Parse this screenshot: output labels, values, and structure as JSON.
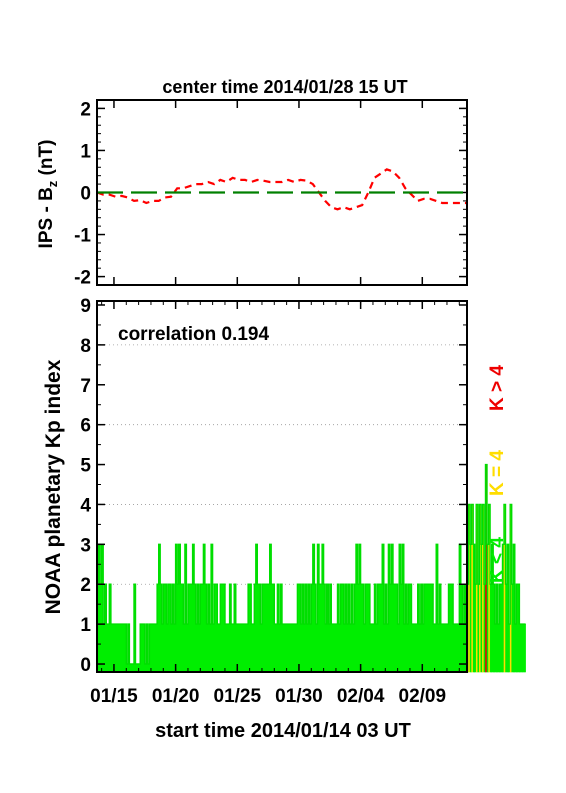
{
  "chart_data": [
    {
      "panel": "top",
      "type": "line",
      "title": "center time 2014/01/28 15 UT",
      "ylabel": {
        "main": "IPS - B",
        "sub": "z",
        "unit": " (nT)"
      },
      "ylim": [
        -2.2,
        2.2
      ],
      "yticks": [
        -2,
        -1,
        0,
        1,
        2
      ],
      "xlim": [
        0,
        30
      ],
      "grid": false,
      "series": [
        {
          "style": "red-dashed",
          "color": "#ff0000",
          "x": [
            0,
            0.5,
            1,
            1.5,
            2,
            2.5,
            3,
            3.5,
            4,
            4.5,
            5,
            5.5,
            6,
            6.5,
            7,
            7.5,
            8,
            8.5,
            9,
            9.5,
            10,
            10.5,
            11,
            11.5,
            12,
            12.5,
            13,
            13.5,
            14,
            14.5,
            15,
            15.5,
            16,
            16.5,
            17,
            17.5,
            18,
            18.5,
            19,
            19.5,
            20,
            20.5,
            21,
            21.5,
            22,
            22.5,
            23,
            23.5,
            24,
            24.5,
            25,
            25.5,
            26,
            26.5,
            27,
            27.5,
            28,
            28.5,
            29,
            29.5,
            30
          ],
          "values": [
            0.0,
            -0.05,
            -0.05,
            -0.1,
            -0.08,
            -0.12,
            -0.2,
            -0.18,
            -0.25,
            -0.2,
            -0.2,
            -0.12,
            -0.1,
            0.1,
            0.1,
            0.15,
            0.2,
            0.2,
            0.25,
            0.2,
            0.3,
            0.25,
            0.35,
            0.3,
            0.3,
            0.25,
            0.3,
            0.28,
            0.25,
            0.25,
            0.25,
            0.3,
            0.25,
            0.3,
            0.28,
            0.2,
            0.0,
            -0.2,
            -0.35,
            -0.4,
            -0.35,
            -0.4,
            -0.35,
            -0.3,
            0.0,
            0.35,
            0.45,
            0.55,
            0.5,
            0.35,
            0.1,
            -0.05,
            -0.2,
            -0.15,
            -0.15,
            -0.2,
            -0.25,
            -0.25,
            -0.25,
            -0.25,
            -0.25
          ]
        },
        {
          "style": "green-long-dash",
          "color": "#008000",
          "x": [
            0,
            30
          ],
          "values": [
            0,
            0
          ]
        }
      ]
    },
    {
      "panel": "bottom",
      "type": "bar",
      "ylabel": "NOAA planetary Kp index",
      "xlabel": "start time 2014/01/14 03 UT",
      "annotation": "correlation 0.194",
      "ylim": [
        -0.2,
        9.1
      ],
      "yticks": [
        0,
        1,
        2,
        3,
        4,
        5,
        6,
        7,
        8,
        9
      ],
      "gridlines_y": [
        2,
        4,
        6,
        8
      ],
      "grid": true,
      "xlim": [
        0,
        30
      ],
      "xtick_positions": [
        1.375,
        6.375,
        11.375,
        16.375,
        21.375,
        26.375
      ],
      "xticklabels": [
        "01/15",
        "01/20",
        "01/25",
        "01/30",
        "02/04",
        "02/09"
      ],
      "legend": [
        {
          "label": "K < 4",
          "color": "#00ee00"
        },
        {
          "label": "K = 4",
          "color": "#ffdd00"
        },
        {
          "label": "K > 4",
          "color": "#ee0000"
        }
      ],
      "kp_values": [
        2,
        3,
        2,
        3,
        1,
        2,
        1,
        1,
        2,
        1,
        1,
        1,
        1,
        1,
        1,
        1,
        1,
        1,
        1,
        0,
        1,
        0,
        0,
        0,
        2,
        0,
        0,
        0,
        1,
        1,
        1,
        0,
        1,
        0,
        1,
        1,
        1,
        1,
        1,
        2,
        3,
        2,
        1,
        2,
        2,
        1,
        2,
        2,
        1,
        2,
        1,
        3,
        2,
        3,
        2,
        2,
        1,
        3,
        1,
        2,
        2,
        2,
        3,
        2,
        1,
        2,
        1,
        2,
        2,
        3,
        2,
        1,
        2,
        1,
        3,
        1,
        2,
        2,
        1,
        1,
        2,
        2,
        2,
        1,
        1,
        1,
        2,
        1,
        1,
        2,
        1,
        1,
        1,
        1,
        1,
        1,
        1,
        1,
        2,
        2,
        1,
        1,
        2,
        3,
        2,
        2,
        1,
        2,
        2,
        2,
        2,
        2,
        3,
        2,
        2,
        1,
        1,
        2,
        1,
        2,
        1,
        1,
        1,
        1,
        1,
        1,
        1,
        1,
        1,
        1,
        2,
        2,
        1,
        2,
        1,
        2,
        1,
        2,
        1,
        2,
        3,
        2,
        1,
        3,
        2,
        2,
        3,
        2,
        1,
        2,
        1,
        2,
        1,
        1,
        1,
        1,
        2,
        1,
        2,
        2,
        1,
        2,
        1,
        2,
        1,
        2,
        1,
        2,
        3,
        2,
        3,
        2,
        2,
        1,
        2,
        2,
        2,
        1,
        1,
        1,
        2,
        1,
        2,
        2,
        2,
        3,
        1,
        2,
        1,
        3,
        2,
        3,
        2,
        2,
        2,
        1,
        3,
        2,
        3,
        1,
        2,
        1,
        2,
        2,
        1,
        1,
        1,
        1,
        2,
        1,
        2,
        1,
        2,
        2,
        2,
        2,
        2,
        2,
        1,
        1,
        3,
        1,
        2,
        1,
        1,
        1,
        1,
        1,
        2,
        2,
        2,
        1,
        1,
        1,
        1,
        3,
        2,
        1,
        2,
        1,
        2,
        4,
        3,
        4,
        3,
        2,
        4,
        2,
        4,
        3,
        4,
        2,
        5,
        3,
        4,
        2,
        3,
        2,
        1,
        2,
        1,
        2,
        2,
        3,
        4,
        2,
        3,
        1,
        4,
        2,
        3,
        1,
        2,
        2,
        1,
        1,
        1,
        1
      ]
    }
  ]
}
